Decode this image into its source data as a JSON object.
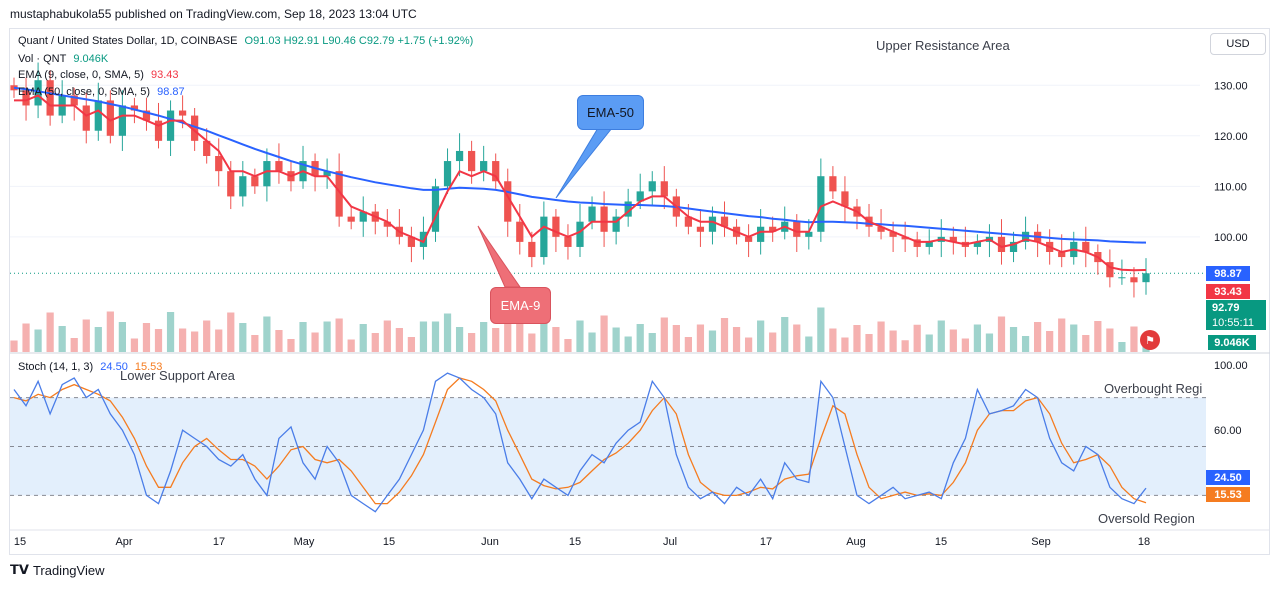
{
  "header": {
    "published": "mustaphabukola55 published on TradingView.com, Sep 18, 2023 13:04 UTC"
  },
  "legend": {
    "symbol": "Quant / United States Dollar, 1D, COINBASE",
    "ohlc": "O91.03  H92.91  L90.46  C92.79  +1.75 (+1.92%)",
    "vol_label": "Vol · QNT",
    "vol_value": "9.046K",
    "ema9_label": "EMA (9, close, 0, SMA, 5)",
    "ema9_value": "93.43",
    "ema50_label": "EMA (50, close, 0, SMA, 5)",
    "ema50_value": "98.87",
    "stoch_label": "Stoch (14, 1, 3)",
    "stoch_k": "24.50",
    "stoch_d": "15.53"
  },
  "currency_button": "USD",
  "annotations": {
    "upper_resistance": "Upper Resistance Area",
    "lower_support": "Lower Support Area",
    "overbought": "Overbought Regi",
    "oversold": "Oversold Region",
    "ema50_callout": "EMA-50",
    "ema9_callout": "EMA-9"
  },
  "price_tags": {
    "ema50": "98.87",
    "ema9": "93.43",
    "last_price": "92.79",
    "countdown": "10:55:11",
    "volume": "9.046K",
    "stoch_k": "24.50",
    "stoch_d": "15.53"
  },
  "colors": {
    "up": "#26a69a",
    "down": "#ef5350",
    "ema9": "#f23645",
    "ema50": "#2962ff",
    "stoch_k": "#4a7de8",
    "stoch_d": "#f57c20",
    "stoch_band": "#e3effc",
    "vol_up": "#9fd3cc",
    "vol_down": "#f5b1b0"
  },
  "chart_data": [
    {
      "type": "candlestick",
      "title": "Quant / United States Dollar, 1D, COINBASE",
      "x_ticks": [
        "15",
        "Apr",
        "17",
        "May",
        "15",
        "Jun",
        "15",
        "Jul",
        "17",
        "Aug",
        "15",
        "Sep",
        "18"
      ],
      "y_ticks": [
        130,
        120,
        110,
        100
      ],
      "ylim": [
        87.5,
        135
      ],
      "close_path": [
        129,
        126,
        131,
        124,
        128,
        126,
        121,
        127,
        120,
        126,
        125,
        123,
        119,
        125,
        124,
        119,
        116,
        113,
        108,
        112,
        110,
        115,
        113,
        111,
        115,
        112,
        113,
        104,
        103,
        105,
        103,
        102,
        100,
        98,
        101,
        110,
        115,
        117,
        113,
        115,
        111,
        103,
        99,
        96,
        104,
        100,
        98,
        103,
        106,
        101,
        104,
        107,
        109,
        111,
        108,
        104,
        102,
        101,
        104,
        102,
        100,
        99,
        102,
        101,
        103,
        100,
        101,
        112,
        109,
        106,
        104,
        102,
        101,
        100,
        99.5,
        98,
        99,
        100,
        99,
        98,
        99,
        100,
        97,
        99,
        101,
        99,
        97,
        96,
        99,
        97,
        95,
        92,
        92,
        91,
        92.79
      ],
      "ema9_path": [
        127,
        127,
        128,
        126,
        126,
        126,
        124,
        125,
        123,
        124,
        124,
        123,
        122,
        123,
        123,
        121,
        119,
        117,
        113,
        113,
        112,
        113,
        113,
        112,
        113,
        112,
        112,
        109,
        106,
        105,
        104,
        103,
        101,
        100,
        99,
        104,
        109,
        113,
        112,
        113,
        112,
        108,
        104,
        100,
        102,
        101,
        100,
        101,
        103,
        103,
        103,
        105,
        107,
        108,
        108,
        106,
        104,
        103,
        103,
        102,
        101,
        100,
        101,
        101,
        102,
        101,
        101,
        106,
        107,
        106,
        105,
        103,
        102,
        101,
        100,
        99,
        99,
        99.5,
        99,
        98.5,
        99,
        99.5,
        98,
        98.5,
        99.5,
        99,
        98,
        97,
        97.5,
        97,
        96,
        94,
        93.5,
        93.4,
        93.43
      ],
      "ema50_path": [
        129.5,
        129.2,
        128.8,
        128.4,
        128,
        127.6,
        127.2,
        126.8,
        126.3,
        125.8,
        125.2,
        124.6,
        124,
        123.3,
        122.6,
        121.8,
        121,
        120.1,
        119.2,
        118.3,
        117.4,
        116.6,
        115.8,
        115,
        114.3,
        113.6,
        113,
        112.4,
        111.8,
        111.3,
        110.8,
        110.4,
        110,
        109.6,
        109.3,
        109.3,
        109.5,
        109.7,
        109.6,
        109.5,
        109.3,
        108.9,
        108.4,
        107.9,
        107.6,
        107.3,
        107,
        106.8,
        106.7,
        106.5,
        106.4,
        106.3,
        106.3,
        106.2,
        106.1,
        105.9,
        105.6,
        105.3,
        105,
        104.7,
        104.4,
        104.1,
        103.9,
        103.6,
        103.4,
        103.1,
        102.9,
        103,
        103,
        102.9,
        102.8,
        102.6,
        102.5,
        102.3,
        102.2,
        102,
        101.8,
        101.6,
        101.4,
        101.2,
        101,
        100.8,
        100.6,
        100.4,
        100.2,
        100,
        99.8,
        99.6,
        99.5,
        99.4,
        99.3,
        99.1,
        99,
        98.9,
        98.87
      ],
      "last": {
        "open": 91.03,
        "high": 92.91,
        "low": 90.46,
        "close": 92.79,
        "change": 1.75,
        "change_pct": 1.92
      }
    },
    {
      "type": "bar",
      "title": "Vol · QNT",
      "last_value": "9.046K"
    },
    {
      "type": "line",
      "title": "Stoch (14, 1, 3)",
      "y_ticks": [
        100,
        60
      ],
      "ylim": [
        0,
        100
      ],
      "band": [
        20,
        80
      ],
      "series": [
        {
          "name": "%K",
          "values": [
            85,
            75,
            90,
            70,
            88,
            92,
            80,
            85,
            70,
            60,
            45,
            20,
            15,
            35,
            60,
            55,
            50,
            42,
            38,
            45,
            30,
            20,
            55,
            62,
            40,
            30,
            50,
            40,
            20,
            15,
            10,
            20,
            30,
            45,
            60,
            90,
            95,
            92,
            85,
            80,
            70,
            40,
            30,
            18,
            30,
            25,
            20,
            35,
            45,
            40,
            52,
            60,
            65,
            90,
            80,
            45,
            25,
            18,
            22,
            15,
            25,
            20,
            30,
            18,
            40,
            30,
            28,
            90,
            80,
            50,
            20,
            15,
            20,
            25,
            18,
            20,
            22,
            18,
            40,
            55,
            85,
            70,
            72,
            75,
            85,
            80,
            55,
            40,
            35,
            50,
            45,
            25,
            18,
            15,
            24.5
          ]
        },
        {
          "name": "%D",
          "values": [
            80,
            78,
            82,
            80,
            85,
            88,
            85,
            82,
            78,
            68,
            55,
            38,
            25,
            25,
            40,
            50,
            55,
            48,
            42,
            42,
            38,
            30,
            38,
            48,
            50,
            42,
            40,
            42,
            35,
            25,
            15,
            15,
            22,
            32,
            45,
            65,
            85,
            92,
            90,
            85,
            78,
            60,
            45,
            30,
            26,
            24,
            25,
            28,
            35,
            42,
            46,
            52,
            60,
            72,
            80,
            70,
            45,
            28,
            22,
            20,
            20,
            22,
            25,
            24,
            30,
            32,
            33,
            55,
            75,
            70,
            45,
            25,
            18,
            20,
            22,
            20,
            21,
            20,
            28,
            40,
            60,
            70,
            72,
            72,
            78,
            80,
            70,
            52,
            40,
            42,
            45,
            38,
            25,
            18,
            15.53
          ]
        }
      ]
    }
  ]
}
